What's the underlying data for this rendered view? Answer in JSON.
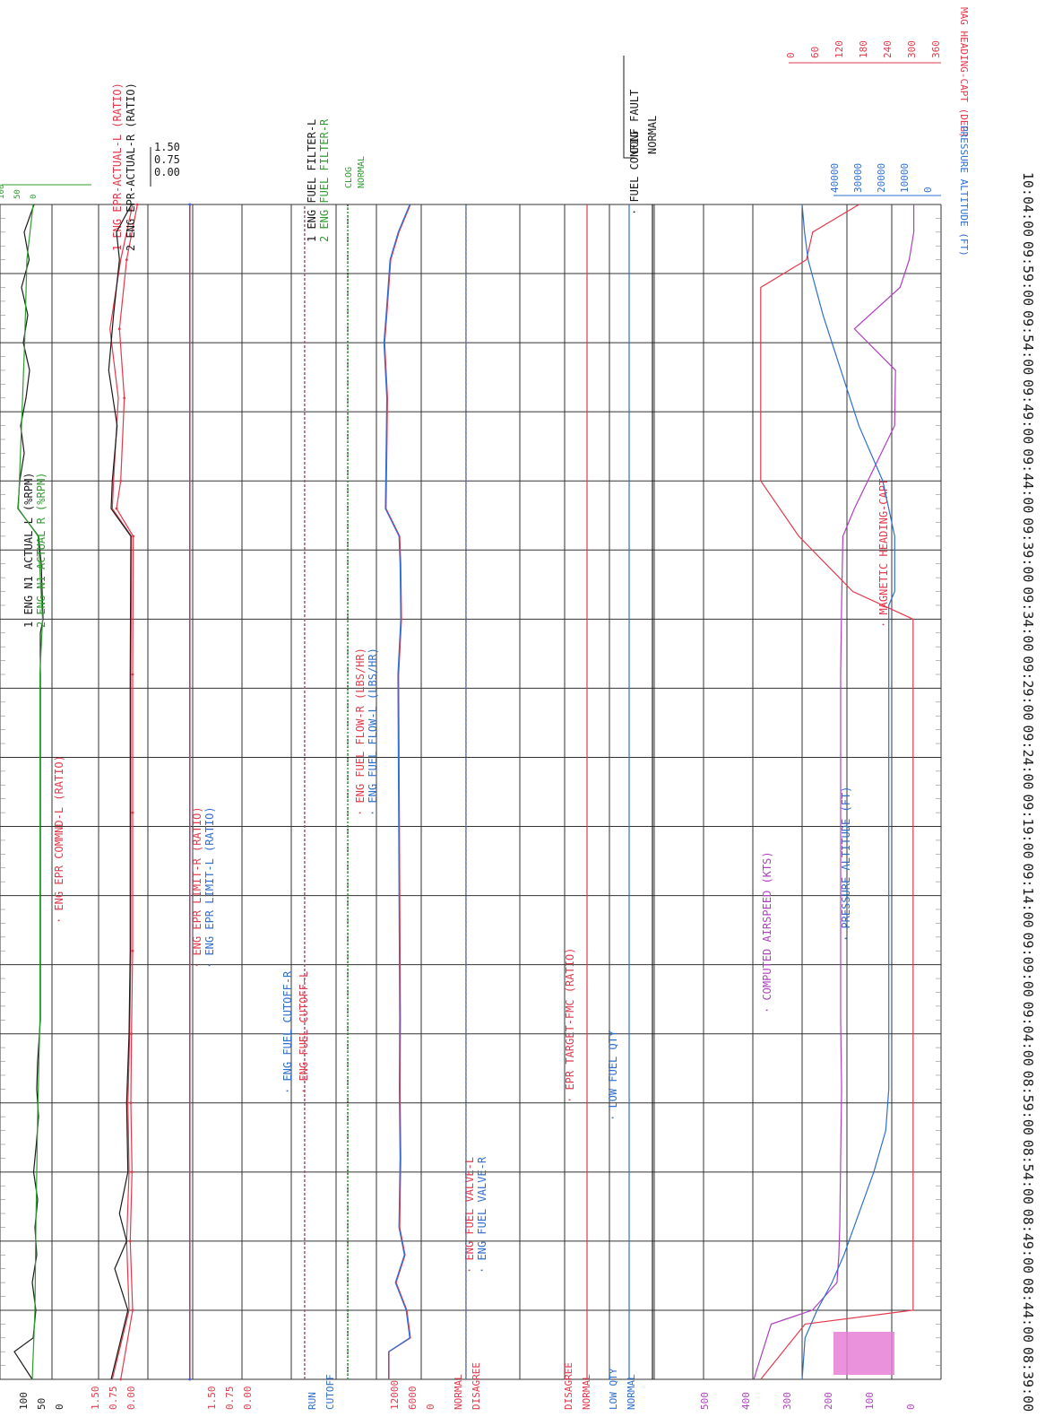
{
  "chart_data": {
    "type": "line",
    "title": "",
    "xlabel": "",
    "ylabel": "",
    "x_axis": {
      "ticks": [
        "08:39:00",
        "08:44:00",
        "08:49:00",
        "08:54:00",
        "08:59:00",
        "09:04:00",
        "09:09:00",
        "09:14:00",
        "09:19:00",
        "09:24:00",
        "09:29:00",
        "09:34:00",
        "09:39:00",
        "09:44:00",
        "09:49:00",
        "09:54:00",
        "09:59:00",
        "10:04:00"
      ]
    },
    "bands": [
      {
        "id": "n1",
        "scale": [
          "100",
          "50",
          "0"
        ],
        "series": [
          {
            "name": "ENG N1 ACTUAL L (%RPM)",
            "number": "1",
            "color": "#1a1a1a",
            "x": [
              "08:39",
              "08:41",
              "08:42",
              "08:44",
              "08:46",
              "08:48",
              "08:50",
              "08:52",
              "08:54",
              "08:56",
              "08:58",
              "09:00",
              "09:02",
              "09:05",
              "09:10",
              "09:20",
              "09:30",
              "09:33",
              "09:34",
              "09:36",
              "09:38",
              "09:40",
              "09:42",
              "09:44",
              "09:46",
              "09:48",
              "09:50",
              "09:52",
              "09:54",
              "09:56",
              "09:58",
              "10:00",
              "10:02",
              "10:04"
            ],
            "values": [
              62,
              22,
              64,
              70,
              62,
              72,
              68,
              74,
              65,
              71,
              76,
              72,
              74,
              80,
              80,
              80,
              80,
              80,
              86,
              84,
              82,
              76,
              30,
              34,
              44,
              36,
              48,
              56,
              42,
              52,
              38,
              55,
              44,
              66
            ]
          },
          {
            "name": "ENG N1 ACTUAL R (%RPM)",
            "number": "2",
            "color": "#2e9d2e",
            "x": [
              "08:39",
              "08:44",
              "08:50",
              "08:58",
              "09:05",
              "09:20",
              "09:30",
              "09:34",
              "09:40",
              "09:42",
              "09:48",
              "09:54",
              "10:00",
              "10:04"
            ],
            "values": [
              62,
              68,
              70,
              74,
              79,
              79,
              79,
              85,
              75,
              31,
              38,
              45,
              50,
              64
            ]
          }
        ]
      },
      {
        "id": "epr",
        "scale": [
          "1.50",
          "0.75",
          "0.00"
        ],
        "series": [
          {
            "name": "ENG EPR COMMND-L (RATIO)",
            "color": "#e23a4c",
            "x": [
              "08:39",
              "08:44",
              "08:49",
              "08:54",
              "08:59",
              "09:04",
              "09:10",
              "09:20",
              "09:30",
              "09:40",
              "09:42",
              "09:44",
              "09:50",
              "09:55",
              "10:00",
              "10:04"
            ],
            "values": [
              1.12,
              1.32,
              1.28,
              1.31,
              1.29,
              1.3,
              1.32,
              1.32,
              1.32,
              1.33,
              1.05,
              1.12,
              1.18,
              1.1,
              1.22,
              1.4
            ]
          },
          {
            "name": "ENG EPR-ACTUAL-L (RATIO)",
            "number": "1",
            "color": "#e23a4c",
            "x": [
              "08:39",
              "08:44",
              "08:49",
              "08:54",
              "08:59",
              "09:04",
              "09:10",
              "09:20",
              "09:30",
              "09:40",
              "09:42",
              "09:44",
              "09:50",
              "09:55",
              "10:00",
              "10:04"
            ],
            "values": [
              0.98,
              1.26,
              1.22,
              1.26,
              1.24,
              1.27,
              1.29,
              1.29,
              1.29,
              1.3,
              0.98,
              1.0,
              1.08,
              0.94,
              1.12,
              1.32
            ]
          },
          {
            "name": "ENG EPR-ACTUAL-R (RATIO)",
            "number": "2",
            "color": "#1a1a1a",
            "x": [
              "08:39",
              "08:44",
              "08:47",
              "08:49",
              "08:51",
              "08:54",
              "08:59",
              "09:04",
              "09:10",
              "09:20",
              "09:30",
              "09:40",
              "09:42",
              "09:44",
              "09:48",
              "09:52",
              "09:56",
              "10:00",
              "10:02",
              "10:04"
            ],
            "values": [
              0.96,
              1.24,
              1.02,
              1.22,
              1.1,
              1.24,
              1.22,
              1.26,
              1.28,
              1.28,
              1.28,
              1.29,
              0.96,
              0.98,
              1.06,
              0.92,
              1.0,
              1.1,
              1.05,
              1.3
            ]
          }
        ]
      },
      {
        "id": "epr-limit",
        "scale": [
          "1.50",
          "0.75",
          "0.00"
        ],
        "series": [
          {
            "name": "ENG EPR LIMIT-R (RATIO)",
            "color": "#e23a4c",
            "x": [
              "08:39",
              "10:04"
            ],
            "values": [
              1.5,
              1.5
            ]
          },
          {
            "name": "ENG EPR LIMIT-L (RATIO)",
            "color": "#2f6fd0",
            "x": [
              "08:39",
              "10:04"
            ],
            "values": [
              1.47,
              1.47
            ]
          }
        ]
      },
      {
        "id": "fuel-cutoff",
        "scale": [
          "RUN",
          "CUTOFF"
        ],
        "series": [
          {
            "name": "ENG FUEL CUTOFF-R",
            "color": "#2f6fd0",
            "x": [
              "08:39",
              "10:04"
            ],
            "values": [
              1,
              1
            ]
          },
          {
            "name": "ENG FUEL CUTOFF-L",
            "color": "#e23a4c",
            "x": [
              "08:39",
              "10:04"
            ],
            "values": [
              0.96,
              0.96
            ]
          }
        ]
      },
      {
        "id": "fuel-filter",
        "scale": [
          "CLOG",
          "NORMAL"
        ],
        "series": [
          {
            "name": "ENG FUEL FILTER-L",
            "number": "1",
            "color": "#1a1a1a",
            "x": [
              "08:39",
              "10:04"
            ],
            "values": [
              0,
              0
            ]
          },
          {
            "name": "ENG FUEL FILTER-R",
            "number": "2",
            "color": "#2e9d2e",
            "x": [
              "08:39",
              "10:04"
            ],
            "values": [
              0.02,
              0.02
            ]
          }
        ]
      },
      {
        "id": "fuel-flow",
        "scale": [
          "12000",
          "6000",
          "0"
        ],
        "series": [
          {
            "name": "ENG FUEL FLOW-R (LBS/HR)",
            "color": "#e23a4c",
            "x": [
              "08:39",
              "08:41",
              "08:42",
              "08:44",
              "08:46",
              "08:48",
              "08:50",
              "08:55",
              "09:00",
              "09:05",
              "09:10",
              "09:20",
              "09:30",
              "09:34",
              "09:38",
              "09:40",
              "09:42",
              "09:44",
              "09:50",
              "09:54",
              "09:56",
              "10:00",
              "10:02",
              "10:04"
            ],
            "values": [
              3000,
              3000,
              9000,
              8000,
              5000,
              7500,
              6000,
              6300,
              6100,
              6200,
              6100,
              5900,
              5700,
              6500,
              6300,
              6000,
              2200,
              2300,
              2600,
              1800,
              2400,
              3500,
              5800,
              9000
            ]
          },
          {
            "name": "ENG FUEL FLOW-L (LBS/HR)",
            "color": "#2f6fd0",
            "x": [
              "08:39",
              "08:41",
              "08:42",
              "08:44",
              "08:46",
              "08:48",
              "08:50",
              "08:55",
              "09:00",
              "09:05",
              "09:10",
              "09:20",
              "09:30",
              "09:34",
              "09:38",
              "09:40",
              "09:42",
              "09:44",
              "09:50",
              "09:54",
              "09:56",
              "10:00",
              "10:02",
              "10:04"
            ],
            "values": [
              2900,
              2900,
              8800,
              7800,
              4800,
              7300,
              5800,
              6100,
              5900,
              6000,
              5900,
              5700,
              5500,
              6300,
              6100,
              5800,
              2000,
              2100,
              2400,
              1600,
              2200,
              3300,
              5600,
              8800
            ]
          }
        ]
      },
      {
        "id": "fuel-valve",
        "scale": [
          "NORMAL",
          "DISAGREE"
        ],
        "series": [
          {
            "name": "ENG FUEL VALVE-L",
            "color": "#e23a4c",
            "x": [
              "08:39",
              "10:04"
            ],
            "values": [
              1,
              1
            ]
          },
          {
            "name": "ENG FUEL VALVE-R",
            "color": "#2f6fd0",
            "x": [
              "08:39",
              "10:04"
            ],
            "values": [
              0.98,
              0.98
            ]
          }
        ]
      },
      {
        "id": "epr-target",
        "scale": [
          "DISAGREE",
          "NORMAL"
        ],
        "series": [
          {
            "name": "EPR TARGET-FMC (RATIO)",
            "color": "#e23a4c",
            "x": [
              "08:39",
              "10:04"
            ],
            "values": [
              0,
              0
            ]
          }
        ]
      },
      {
        "id": "fuel-qty",
        "scale": [
          "LOW QTY",
          "NORMAL"
        ],
        "series": [
          {
            "name": "LOW FUEL QTY",
            "color": "#2f6fd0",
            "x": [
              "08:39",
              "10:04"
            ],
            "values": [
              0,
              0
            ]
          }
        ]
      },
      {
        "id": "fuel-config",
        "scale": [
          "CONF FAULT",
          "NORMAL"
        ],
        "series": [
          {
            "name": "FUEL CONFIG",
            "color": "#1a1a1a",
            "x": [
              "08:39",
              "10:04"
            ],
            "values": [
              0,
              0
            ]
          }
        ]
      },
      {
        "id": "airspeed",
        "scale": [
          "500",
          "400",
          "300",
          "200",
          "100",
          "0"
        ],
        "series": [
          {
            "name": "COMPUTED AIRSPEED (KTS)",
            "color": "#b03fc0",
            "x": [
              "08:39",
              "08:43",
              "08:44",
              "08:46",
              "08:48",
              "08:50",
              "08:55",
              "09:00",
              "09:05",
              "09:10",
              "09:20",
              "09:30",
              "09:35",
              "09:40",
              "09:42",
              "09:48",
              "09:52",
              "09:55",
              "09:58",
              "10:00",
              "10:02",
              "10:04"
            ],
            "values": [
              110,
              148,
              238,
              292,
              296,
              298,
              300,
              302,
              300,
              300,
              300,
              300,
              302,
              305,
              330,
              418,
              420,
              330,
              430,
              450,
              460,
              460
            ]
          },
          {
            "name": "MAGNETIC HEADING-CAPT",
            "color": "#e23a4c",
            "x": [
              "08:39",
              "08:43",
              "08:44",
              "09:00",
              "09:20",
              "09:30",
              "09:34",
              "09:36",
              "09:40",
              "09:44",
              "09:50",
              "09:55",
              "09:58",
              "10:00",
              "10:02",
              "10:04"
            ],
            "values": [
              90,
              160,
              330,
              330,
              330,
              330,
              330,
              235,
              150,
              90,
              90,
              90,
              90,
              162,
              172,
              245
            ]
          }
        ]
      },
      {
        "id": "altitude",
        "scale": [
          "40000",
          "30000",
          "20000",
          "10000",
          "0"
        ],
        "series": [
          {
            "name": "PRESSURE ALTITUDE (FT)",
            "color": "#2f6fd0",
            "x": [
              "08:39",
              "08:42",
              "08:44",
              "08:46",
              "08:48",
              "08:51",
              "08:54",
              "08:57",
              "09:00",
              "09:10",
              "09:20",
              "09:30",
              "09:35",
              "09:36",
              "09:40",
              "09:44",
              "09:48",
              "09:52",
              "09:56",
              "10:00",
              "10:02",
              "10:04"
            ],
            "values": [
              0,
              1000,
              5000,
              10000,
              14000,
              19000,
              24000,
              28000,
              29000,
              29000,
              29000,
              29000,
              29000,
              31000,
              31000,
              27000,
              19000,
              13000,
              7000,
              2000,
              800,
              0
            ]
          }
        ]
      }
    ],
    "legend_right": {
      "heading_label": "MAG HEADING-CAPT (DEG)",
      "heading_ticks": [
        "0",
        "60",
        "120",
        "180",
        "240",
        "300",
        "360"
      ],
      "altitude_label": "PRESSURE ALTITUDE (FT)",
      "altitude_ticks": [
        "40000",
        "30000",
        "20000",
        "10000",
        "0"
      ]
    }
  }
}
